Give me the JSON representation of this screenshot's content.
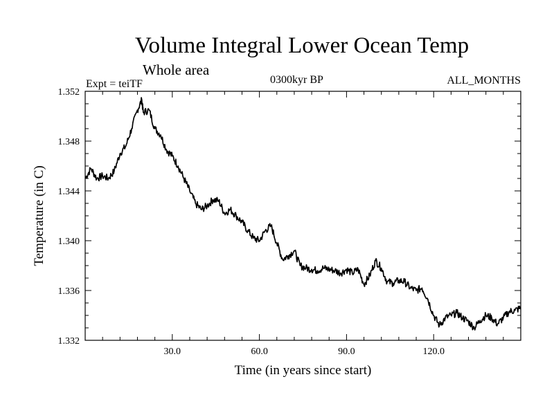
{
  "header": {
    "title": "Volume Integral Lower Ocean Temp",
    "subtitle": "Whole area",
    "experiment": "Expt = teiTF",
    "period": "0300kyr BP",
    "months": "ALL_MONTHS"
  },
  "chart_data": {
    "type": "line",
    "title": "Volume Integral Lower Ocean Temp",
    "xlabel": "Time (in years since start)",
    "ylabel": "Temperature (in C)",
    "xlim": [
      0,
      150
    ],
    "ylim": [
      1.332,
      1.352
    ],
    "xticks": [
      30,
      60,
      90,
      120
    ],
    "xtick_labels": [
      "30.0",
      "60.0",
      "90.0",
      "120.0"
    ],
    "yticks": [
      1.332,
      1.336,
      1.34,
      1.344,
      1.348,
      1.352
    ],
    "ytick_labels": [
      "1.332",
      "1.336",
      "1.340",
      "1.344",
      "1.348",
      "1.352"
    ],
    "grid": false,
    "series": [
      {
        "name": "Temperature",
        "x": [
          0,
          2,
          4,
          6,
          8,
          10,
          12,
          14,
          16,
          18,
          19.5,
          20,
          22,
          24,
          26,
          28,
          30,
          32,
          34,
          36,
          38,
          40,
          42,
          44,
          46,
          48,
          50,
          52,
          54,
          56,
          58,
          60,
          62,
          64,
          66,
          68,
          70,
          72,
          74,
          76,
          78,
          80,
          82,
          84,
          86,
          88,
          90,
          92,
          94,
          96,
          98,
          100,
          102,
          104,
          106,
          108,
          110,
          112,
          114,
          116,
          118,
          120,
          122,
          124,
          126,
          128,
          130,
          132,
          134,
          136,
          138,
          140,
          142,
          144,
          146,
          148,
          150
        ],
        "values": [
          1.345,
          1.3458,
          1.345,
          1.3452,
          1.345,
          1.3456,
          1.347,
          1.3476,
          1.349,
          1.3505,
          1.3513,
          1.3503,
          1.3505,
          1.349,
          1.3485,
          1.3473,
          1.3468,
          1.346,
          1.345,
          1.344,
          1.343,
          1.3425,
          1.3428,
          1.3433,
          1.3432,
          1.3422,
          1.3425,
          1.342,
          1.3415,
          1.3408,
          1.3402,
          1.34,
          1.3408,
          1.3412,
          1.3398,
          1.3385,
          1.3388,
          1.3392,
          1.338,
          1.3378,
          1.3377,
          1.3376,
          1.3378,
          1.3377,
          1.3376,
          1.3374,
          1.3377,
          1.3374,
          1.3377,
          1.3365,
          1.3372,
          1.3384,
          1.3378,
          1.3367,
          1.3366,
          1.3368,
          1.3367,
          1.3362,
          1.336,
          1.3362,
          1.3353,
          1.334,
          1.3332,
          1.3338,
          1.334,
          1.3342,
          1.3338,
          1.3335,
          1.333,
          1.3336,
          1.334,
          1.3338,
          1.3333,
          1.3338,
          1.3343,
          1.3344,
          1.3346
        ]
      }
    ]
  }
}
